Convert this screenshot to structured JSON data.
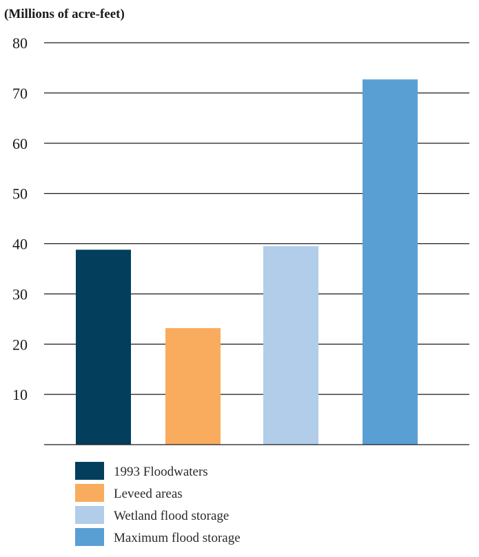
{
  "chart_data": {
    "type": "bar",
    "ylabel": "(Millions of acre-feet)",
    "ylim": [
      0,
      80
    ],
    "yticks": [
      10,
      20,
      30,
      40,
      50,
      60,
      70,
      80
    ],
    "grid": true,
    "legend_position": "bottom-left",
    "categories": [
      "1993 Floodwaters",
      "Leveed areas",
      "Wetland flood storage",
      "Maximum flood storage"
    ],
    "values": [
      38.8,
      23.2,
      39.5,
      72.7
    ],
    "colors": [
      "#033f5c",
      "#f9ac5e",
      "#b1cde9",
      "#5a9fd4"
    ]
  }
}
